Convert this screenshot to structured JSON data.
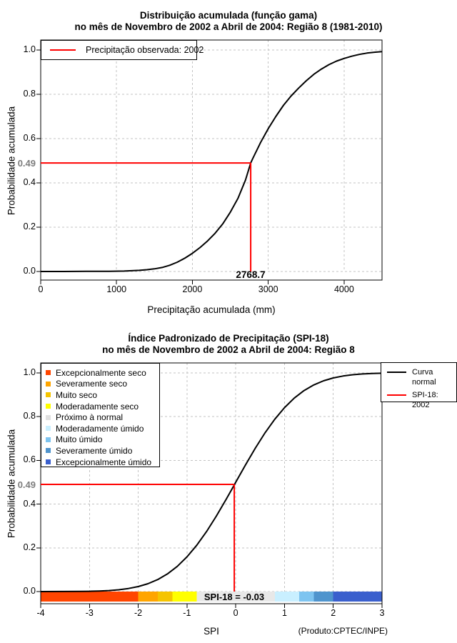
{
  "colors": {
    "marker_red": "#ff0000",
    "curve_black": "#000000",
    "grid_gray": "#c3c3c3",
    "highlight_tick_gray": "#7d7d7d"
  },
  "chart_data": [
    {
      "type": "line",
      "title_line1": "Distribuição acumulada (função gama)",
      "title_line2": "no mês de Novembro de 2002 a Abril de 2004: Região 8 (1981-2010)",
      "xlabel": "Precipitação acumulada (mm)",
      "ylabel": "Probabilidade acumulada",
      "xlim": [
        0,
        4500
      ],
      "ylim": [
        0,
        1
      ],
      "grid": true,
      "xticks": [
        {
          "v": 0,
          "label": "0"
        },
        {
          "v": 1000,
          "label": "1000"
        },
        {
          "v": 2000,
          "label": "2000"
        },
        {
          "v": 3000,
          "label": "3000"
        },
        {
          "v": 4000,
          "label": "4000"
        }
      ],
      "yticks": [
        {
          "v": 0.0,
          "label": "0.0"
        },
        {
          "v": 0.2,
          "label": "0.2"
        },
        {
          "v": 0.4,
          "label": "0.4"
        },
        {
          "v": 0.6,
          "label": "0.6"
        },
        {
          "v": 0.8,
          "label": "0.8"
        },
        {
          "v": 1.0,
          "label": "1.0"
        }
      ],
      "highlight_tick": {
        "v": 0.49,
        "label": "0.49"
      },
      "legend": {
        "position": "top-left",
        "items": [
          {
            "label": "Precipitação observada: 2002",
            "color": "#ff0000"
          }
        ]
      },
      "marker": {
        "x": 2768.7,
        "y": 0.49,
        "label": "2768.7",
        "color": "#ff0000"
      },
      "series": [
        {
          "name": "Distribuição gama acumulada",
          "color": "#000000",
          "points": [
            [
              0,
              0
            ],
            [
              300,
              0
            ],
            [
              600,
              0.001
            ],
            [
              900,
              0.001
            ],
            [
              1100,
              0.002
            ],
            [
              1300,
              0.005
            ],
            [
              1400,
              0.008
            ],
            [
              1500,
              0.012
            ],
            [
              1600,
              0.018
            ],
            [
              1700,
              0.028
            ],
            [
              1800,
              0.042
            ],
            [
              1900,
              0.06
            ],
            [
              2000,
              0.082
            ],
            [
              2100,
              0.108
            ],
            [
              2200,
              0.138
            ],
            [
              2300,
              0.173
            ],
            [
              2400,
              0.215
            ],
            [
              2500,
              0.268
            ],
            [
              2600,
              0.33
            ],
            [
              2700,
              0.413
            ],
            [
              2768.7,
              0.49
            ],
            [
              2800,
              0.513
            ],
            [
              2900,
              0.583
            ],
            [
              3000,
              0.645
            ],
            [
              3100,
              0.7
            ],
            [
              3200,
              0.75
            ],
            [
              3300,
              0.792
            ],
            [
              3400,
              0.828
            ],
            [
              3500,
              0.861
            ],
            [
              3600,
              0.89
            ],
            [
              3700,
              0.914
            ],
            [
              3800,
              0.934
            ],
            [
              3900,
              0.95
            ],
            [
              4000,
              0.962
            ],
            [
              4100,
              0.972
            ],
            [
              4200,
              0.98
            ],
            [
              4300,
              0.986
            ],
            [
              4400,
              0.99
            ],
            [
              4500,
              0.993
            ]
          ]
        }
      ]
    },
    {
      "type": "line",
      "title_line1": "Índice Padronizado de Precipitação (SPI-18)",
      "title_line2": "no mês de Novembro de 2002 a Abril de 2004: Região 8",
      "xlabel": "SPI",
      "ylabel": "Probabilidade acumulada",
      "footnote": "(Produto:CPTEC/INPE)",
      "xlim": [
        -4,
        3
      ],
      "ylim": [
        0,
        1
      ],
      "grid": true,
      "xticks": [
        {
          "v": -4,
          "label": "-4"
        },
        {
          "v": -3,
          "label": "-3"
        },
        {
          "v": -2,
          "label": "-2"
        },
        {
          "v": -1,
          "label": "-1"
        },
        {
          "v": 0,
          "label": "0"
        },
        {
          "v": 1,
          "label": "1"
        },
        {
          "v": 2,
          "label": "2"
        },
        {
          "v": 3,
          "label": "3"
        }
      ],
      "yticks": [
        {
          "v": 0.0,
          "label": "0.0"
        },
        {
          "v": 0.2,
          "label": "0.2"
        },
        {
          "v": 0.4,
          "label": "0.4"
        },
        {
          "v": 0.6,
          "label": "0.6"
        },
        {
          "v": 0.8,
          "label": "0.8"
        },
        {
          "v": 1.0,
          "label": "1.0"
        }
      ],
      "highlight_tick": {
        "v": 0.49,
        "label": "0.49"
      },
      "category_legend": [
        {
          "label": "Excepcionalmente seco",
          "color": "#ff4500"
        },
        {
          "label": "Severamente seco",
          "color": "#ffa500"
        },
        {
          "label": "Muito seco",
          "color": "#f5c400"
        },
        {
          "label": "Moderadamente seco",
          "color": "#ffff00"
        },
        {
          "label": "Próximo à normal",
          "color": "#e0e0e0"
        },
        {
          "label": "Moderadamente úmido",
          "color": "#c9efff"
        },
        {
          "label": "Muito úmido",
          "color": "#7ec4f0"
        },
        {
          "label": "Severamente úmido",
          "color": "#4f94cd"
        },
        {
          "label": "Excepcionalmente úmido",
          "color": "#3a5fcd"
        }
      ],
      "line_legend": [
        {
          "label": "Curva normal",
          "color": "#000000"
        },
        {
          "label": "SPI-18: 2002",
          "color": "#ff0000"
        }
      ],
      "colorbar": {
        "segments": [
          {
            "from": -4,
            "to": -2,
            "color": "#ff4500"
          },
          {
            "from": -2,
            "to": -1.6,
            "color": "#ffa500"
          },
          {
            "from": -1.6,
            "to": -1.3,
            "color": "#f5c400"
          },
          {
            "from": -1.3,
            "to": -0.8,
            "color": "#ffff00"
          },
          {
            "from": -0.8,
            "to": 0.8,
            "color": "#e8e8e8"
          },
          {
            "from": 0.8,
            "to": 1.3,
            "color": "#c9efff"
          },
          {
            "from": 1.3,
            "to": 1.6,
            "color": "#7ec4f0"
          },
          {
            "from": 1.6,
            "to": 2,
            "color": "#4f94cd"
          },
          {
            "from": 2,
            "to": 3,
            "color": "#3a5fcd"
          }
        ]
      },
      "marker": {
        "x": -0.03,
        "y": 0.49,
        "label": "SPI-18 = -0.03",
        "color": "#ff0000"
      },
      "series": [
        {
          "name": "Curva normal",
          "color": "#000000",
          "points": [
            [
              -4,
              0.0
            ],
            [
              -3.6,
              0.0002
            ],
            [
              -3.2,
              0.0007
            ],
            [
              -3,
              0.0013
            ],
            [
              -2.8,
              0.0026
            ],
            [
              -2.6,
              0.0047
            ],
            [
              -2.4,
              0.0082
            ],
            [
              -2.2,
              0.0139
            ],
            [
              -2,
              0.0228
            ],
            [
              -1.8,
              0.0359
            ],
            [
              -1.6,
              0.0548
            ],
            [
              -1.4,
              0.0808
            ],
            [
              -1.2,
              0.1151
            ],
            [
              -1,
              0.1587
            ],
            [
              -0.8,
              0.2119
            ],
            [
              -0.6,
              0.2743
            ],
            [
              -0.4,
              0.3446
            ],
            [
              -0.2,
              0.4207
            ],
            [
              -0.03,
              0.488
            ],
            [
              0,
              0.5
            ],
            [
              0.2,
              0.5793
            ],
            [
              0.4,
              0.6554
            ],
            [
              0.6,
              0.7257
            ],
            [
              0.8,
              0.7881
            ],
            [
              1,
              0.8413
            ],
            [
              1.2,
              0.8849
            ],
            [
              1.4,
              0.9192
            ],
            [
              1.6,
              0.9452
            ],
            [
              1.8,
              0.9641
            ],
            [
              2,
              0.9772
            ],
            [
              2.2,
              0.9861
            ],
            [
              2.4,
              0.9918
            ],
            [
              2.6,
              0.9953
            ],
            [
              2.8,
              0.9974
            ],
            [
              3,
              0.9987
            ]
          ]
        }
      ]
    }
  ]
}
